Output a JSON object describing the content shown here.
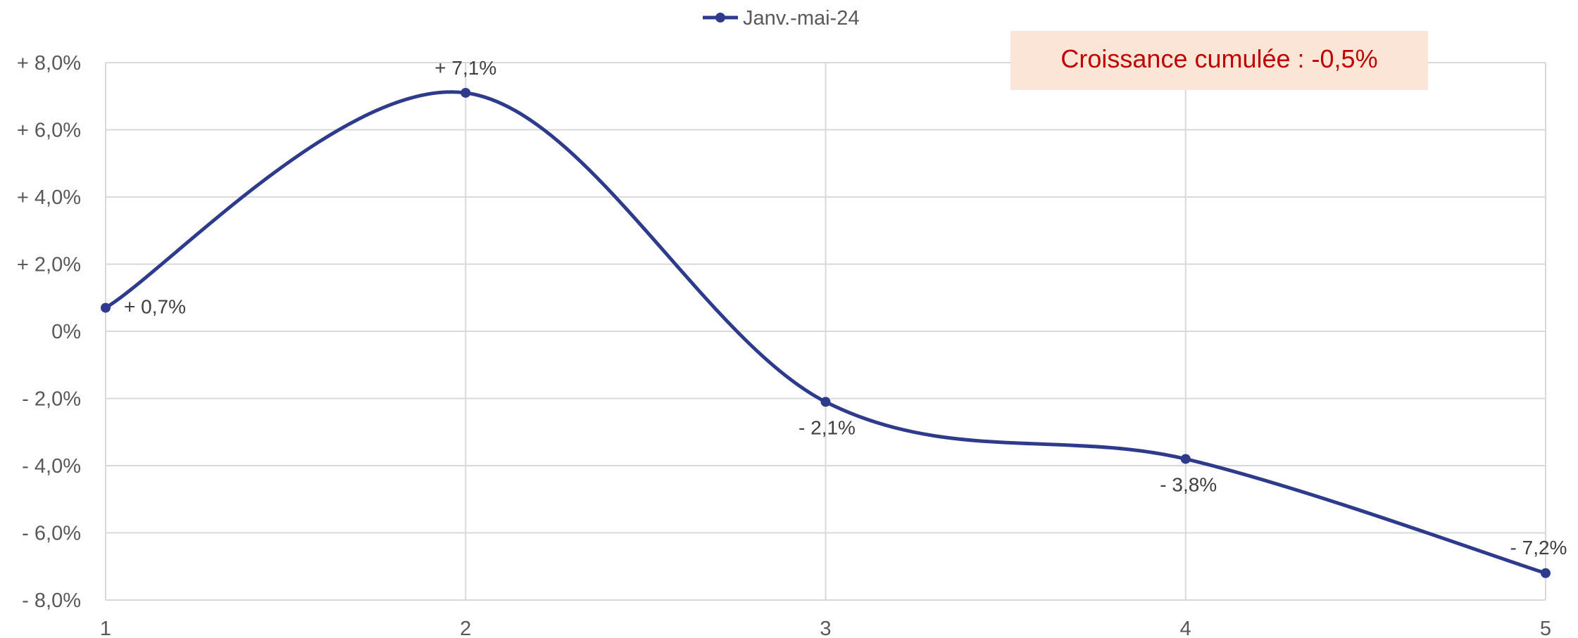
{
  "chart_data": {
    "type": "line",
    "smooth": true,
    "x": [
      1,
      2,
      3,
      4,
      5
    ],
    "series": [
      {
        "name": "Janv.-mai-24",
        "values": [
          0.7,
          7.1,
          -2.1,
          -3.8,
          -7.2
        ],
        "data_labels": [
          "+ 0,7%",
          "+ 7,1%",
          "- 2,1%",
          "- 3,8%",
          "- 7,2%"
        ],
        "color": "#2e3a8c"
      }
    ],
    "ylim": [
      -8,
      8
    ],
    "xlim": [
      1,
      5
    ],
    "y_ticks": [
      8,
      6,
      4,
      2,
      0,
      -2,
      -4,
      -6,
      -8
    ],
    "y_tick_labels": [
      "+ 8,0%",
      "+ 6,0%",
      "+ 4,0%",
      "+ 2,0%",
      "0%",
      "- 2,0%",
      "- 4,0%",
      "- 6,0%",
      "- 8,0%"
    ],
    "x_tick_labels": [
      "1",
      "2",
      "3",
      "4",
      "5"
    ],
    "grid": true,
    "legend_position": "top-center",
    "annotation": {
      "text": "Croissance cumulée : -0,5%",
      "text_color": "#c00000",
      "background": "#fbe5d6"
    },
    "colors": {
      "grid": "#d9d9d9",
      "tick_text": "#595959",
      "label_text": "#404040"
    }
  }
}
